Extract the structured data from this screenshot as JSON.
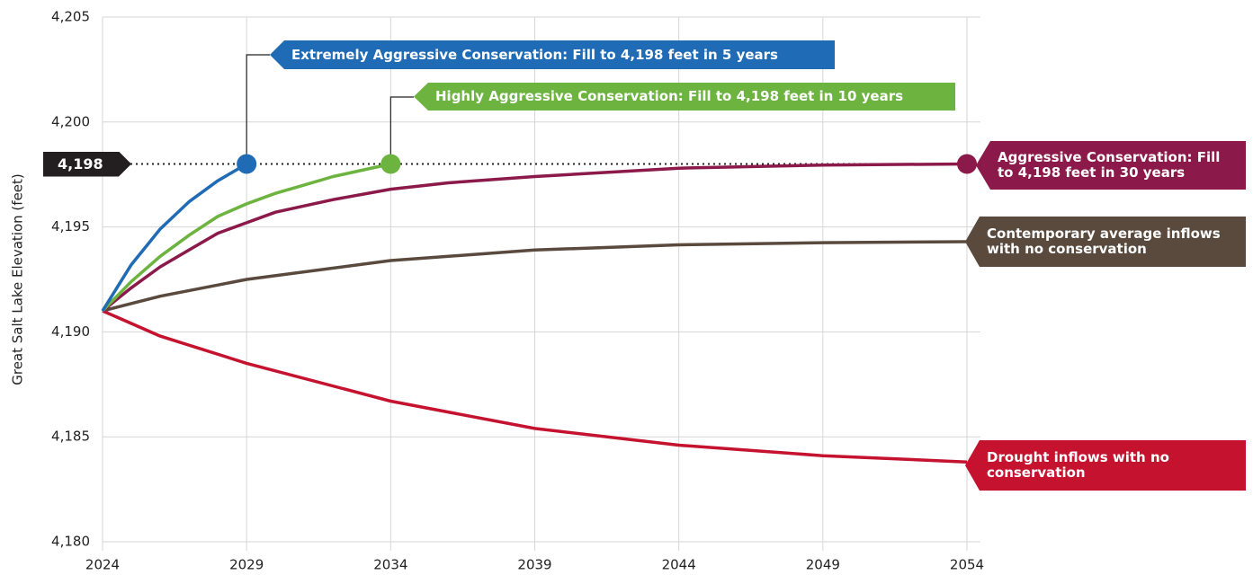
{
  "chart_data": {
    "type": "line",
    "y_label": "Great Salt Lake Elevation (feet)",
    "xlim": [
      2024,
      2054
    ],
    "xticks": [
      2024,
      2029,
      2034,
      2039,
      2044,
      2049,
      2054
    ],
    "ylim": [
      4180,
      4205
    ],
    "yticks": [
      {
        "value": 4180,
        "label": "4,180"
      },
      {
        "value": 4185,
        "label": "4,185"
      },
      {
        "value": 4190,
        "label": "4,190"
      },
      {
        "value": 4195,
        "label": "4,195"
      },
      {
        "value": 4200,
        "label": "4,200"
      },
      {
        "value": 4205,
        "label": "4,205"
      }
    ],
    "grid": true,
    "reference_line": {
      "value": 4198,
      "label": "4,198"
    },
    "series": [
      {
        "name": "Extremely Aggressive Conservation: Fill to 4,198 feet in 5 years",
        "color": "#1f6bb5",
        "x": [
          2024,
          2025,
          2026,
          2027,
          2028,
          2029
        ],
        "values": [
          4191,
          4193.2,
          4194.9,
          4196.2,
          4197.2,
          4198
        ]
      },
      {
        "name": "Highly Aggressive Conservation: Fill to 4,198 feet in 10 years",
        "color": "#6db33f",
        "x": [
          2024,
          2025,
          2026,
          2027,
          2028,
          2029,
          2030,
          2031,
          2032,
          2033,
          2034
        ],
        "values": [
          4191,
          4192.4,
          4193.6,
          4194.6,
          4195.5,
          4196.1,
          4196.6,
          4197.0,
          4197.4,
          4197.7,
          4198
        ]
      },
      {
        "name": "Aggressive Conservation: Fill to 4,198 feet in 30 years",
        "color": "#8b1a4a",
        "x": [
          2024,
          2025,
          2026,
          2027,
          2028,
          2029,
          2030,
          2031,
          2032,
          2034,
          2036,
          2039,
          2044,
          2049,
          2054
        ],
        "values": [
          4191,
          4192.1,
          4193.1,
          4193.9,
          4194.7,
          4195.2,
          4195.7,
          4196.0,
          4196.3,
          4196.8,
          4197.1,
          4197.4,
          4197.8,
          4197.95,
          4198
        ]
      },
      {
        "name": "Contemporary average inflows with no conservation",
        "color": "#5a4a3e",
        "x": [
          2024,
          2026,
          2029,
          2034,
          2039,
          2044,
          2049,
          2054
        ],
        "values": [
          4191,
          4191.7,
          4192.5,
          4193.4,
          4193.9,
          4194.15,
          4194.25,
          4194.3
        ]
      },
      {
        "name": "Drought inflows with no conservation",
        "color": "#c4122f",
        "x": [
          2024,
          2026,
          2029,
          2034,
          2039,
          2044,
          2049,
          2054
        ],
        "values": [
          4191,
          4189.8,
          4188.5,
          4186.7,
          4185.4,
          4184.6,
          4184.1,
          4183.8
        ]
      }
    ]
  }
}
